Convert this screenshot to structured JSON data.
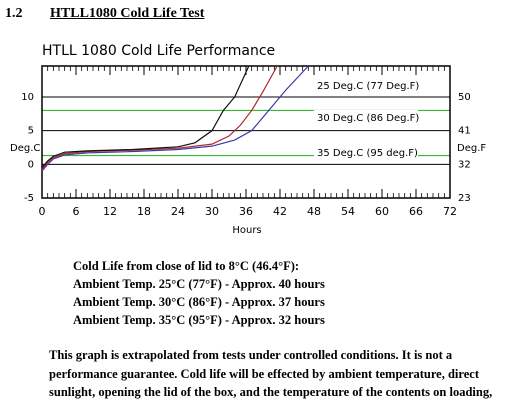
{
  "heading": {
    "number": "1.2",
    "title": "HTLL1080 Cold Life Test"
  },
  "chart_data": {
    "type": "line",
    "title": "HTLL 1080 Cold Life Performance",
    "x_label": "Hours",
    "y_label": "Deg.C",
    "y2_label": "Deg.F",
    "xlim": [
      0,
      72
    ],
    "xticks": [
      0,
      6,
      12,
      18,
      24,
      30,
      36,
      42,
      48,
      54,
      60,
      66,
      72
    ],
    "ylim": [
      -5,
      14.6
    ],
    "yticks": [
      -5,
      0,
      5,
      10
    ],
    "y2lim": [
      23,
      58.28
    ],
    "y2ticks": [
      23,
      32,
      41,
      50
    ],
    "grid": true,
    "reference_lines": [
      8,
      1.3
    ],
    "reference_color": "#33bb33",
    "series": [
      {
        "name": "25 Deg.C (77 Deg.F)",
        "color": "#3a3aa8",
        "x": [
          0,
          1,
          2,
          4,
          8,
          16,
          24,
          30,
          34,
          37,
          40,
          43,
          47
        ],
        "values": [
          -1,
          0,
          0.8,
          1.4,
          1.7,
          1.9,
          2.2,
          2.7,
          3.6,
          5,
          8,
          11,
          14.6
        ]
      },
      {
        "name": "30 Deg.C (86 Deg.F)",
        "color": "#b02828",
        "x": [
          0,
          1,
          2,
          4,
          8,
          16,
          24,
          30,
          33,
          35,
          37,
          39,
          41.5
        ],
        "values": [
          -0.8,
          0.3,
          1,
          1.6,
          1.9,
          2.1,
          2.4,
          3,
          4.2,
          5.8,
          8,
          10.8,
          14.6
        ]
      },
      {
        "name": "35 Deg.C (95 deg.F)",
        "color": "#111111",
        "x": [
          0,
          1,
          2,
          4,
          8,
          16,
          24,
          27,
          30,
          32,
          34,
          36.5
        ],
        "values": [
          -0.5,
          0.5,
          1.2,
          1.8,
          2,
          2.2,
          2.6,
          3.2,
          5,
          8,
          10,
          14.6
        ]
      }
    ]
  },
  "notes": {
    "title": "Cold Life from close of lid to 8°C (46.4°F):",
    "lines": [
      "Ambient Temp. 25°C (77°F) - Approx. 40 hours",
      "Ambient Temp. 30°C (86°F) - Approx. 37 hours",
      "Ambient Temp. 35°C (95°F) - Approx. 32 hours"
    ]
  },
  "disclaimer": "This graph is extrapolated from  tests under controlled conditions. It is not a performance guarantee. Cold life will be effected by ambient temperature, direct sunlight, opening the lid of the box, and the temperature of the contents on loading,"
}
